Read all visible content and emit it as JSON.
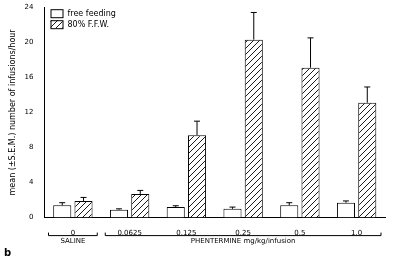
{
  "chart_data": {
    "type": "bar",
    "y_label": "mean (±S.E.M.) number of infusions/hour",
    "categories": [
      "0",
      "0.0625",
      "0.125",
      "0.25",
      "0.5",
      "1.0"
    ],
    "groups": [
      {
        "label": "SALINE",
        "categories": [
          "0"
        ]
      },
      {
        "label": "PHENTERMINE mg/kg/infusion",
        "categories": [
          "0.0625",
          "0.125",
          "0.25",
          "0.5",
          "1.0"
        ]
      }
    ],
    "series": [
      {
        "name": "free feeding",
        "color": "#ffffff",
        "values": [
          1.4,
          0.9,
          1.2,
          1.0,
          1.4,
          1.7
        ],
        "errors": [
          0.3,
          0.1,
          0.15,
          0.2,
          0.3,
          0.2
        ]
      },
      {
        "name": "80% F.F.W.",
        "color": "#000000",
        "marker": "hatch",
        "values": [
          1.9,
          2.7,
          9.4,
          20.3,
          17.1,
          13.1
        ],
        "errors": [
          0.4,
          0.4,
          1.6,
          3.1,
          3.4,
          1.8
        ]
      }
    ],
    "ylim": [
      0,
      24
    ],
    "yticks": [
      0,
      4,
      8,
      12,
      16,
      20,
      24
    ],
    "grid": false,
    "legend": "top-left",
    "annotations": [
      {
        "text": "b"
      }
    ]
  }
}
